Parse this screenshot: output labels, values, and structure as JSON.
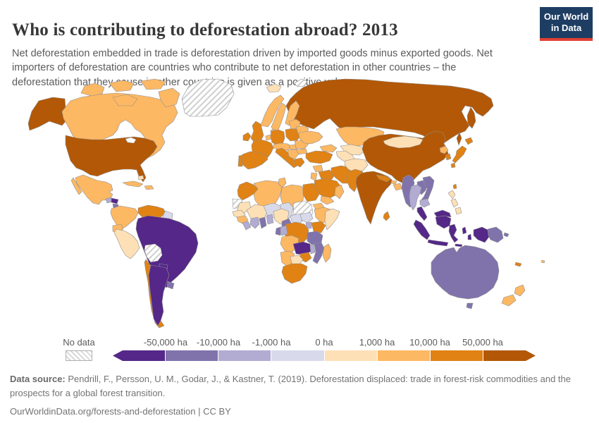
{
  "header": {
    "title": "Who is contributing to deforestation abroad? 2013",
    "subtitle": "Net deforestation embedded in trade is deforestation driven by imported goods minus exported goods. Net importers of deforestation are countries who contribute to net deforestation in other countries – the deforestation that they cause in other countries is given as a positive value.",
    "logo_line1": "Our World",
    "logo_line2": "in Data",
    "logo_bg_color": "#1d3d63",
    "logo_accent_color": "#e04034"
  },
  "legend": {
    "no_data_label": "No data",
    "tick_labels": [
      "-50,000 ha",
      "-10,000 ha",
      "-1,000 ha",
      "0 ha",
      "1,000 ha",
      "10,000 ha",
      "50,000 ha"
    ],
    "colors": [
      "#542788",
      "#8073ac",
      "#b2abd2",
      "#d8daeb",
      "#fee0b6",
      "#fdb863",
      "#e08214",
      "#b35806"
    ],
    "bin_ranges": [
      "below -50,000 ha",
      "-50,000 to -10,000 ha",
      "-10,000 to -1,000 ha",
      "-1,000 to 0 ha",
      "0 to 1,000 ha",
      "1,000 to 10,000 ha",
      "10,000 to 50,000 ha",
      "above 50,000 ha"
    ]
  },
  "footer": {
    "source_label": "Data source:",
    "source_text": " Pendrill, F., Persson, U. M., Godar, J., & Kastner, T. (2019). Deforestation displaced: trade in forest-risk commodities and the prospects for a global forest transition.",
    "link_line": "OurWorldinData.org/forests-and-deforestation | CC BY"
  },
  "chart_data": {
    "type": "choropleth",
    "title": "Who is contributing to deforestation abroad?",
    "year": "2013",
    "unit": "ha",
    "legend_position": "bottom",
    "countries": {
      "united-states": {
        "name": "United States",
        "bin": 7
      },
      "canada": {
        "name": "Canada",
        "bin": 5
      },
      "greenland": {
        "name": "Greenland",
        "bin": "no_data"
      },
      "mexico": {
        "name": "Mexico",
        "bin": 5
      },
      "guatemala": {
        "name": "Guatemala",
        "bin": 2
      },
      "honduras": {
        "name": "Honduras",
        "bin": 0
      },
      "nicaragua": {
        "name": "Nicaragua",
        "bin": 1
      },
      "costa-rica": {
        "name": "Costa Rica",
        "bin": 5
      },
      "panama": {
        "name": "Panama",
        "bin": 5
      },
      "cuba": {
        "name": "Cuba",
        "bin": 5
      },
      "hispaniola": {
        "name": "Haiti and Dominican Republic",
        "bin": 5
      },
      "bahamas": {
        "name": "Bahamas",
        "bin": 4
      },
      "colombia": {
        "name": "Colombia",
        "bin": 5
      },
      "venezuela": {
        "name": "Venezuela",
        "bin": 6
      },
      "guianas": {
        "name": "Guyana and Suriname",
        "bin": 3
      },
      "ecuador": {
        "name": "Ecuador",
        "bin": 5
      },
      "peru": {
        "name": "Peru",
        "bin": 4
      },
      "brazil": {
        "name": "Brazil",
        "bin": 0
      },
      "bolivia": {
        "name": "Bolivia",
        "bin": "no_data"
      },
      "paraguay": {
        "name": "Paraguay",
        "bin": 0
      },
      "chile": {
        "name": "Chile",
        "bin": 6
      },
      "argentina": {
        "name": "Argentina",
        "bin": 0
      },
      "uruguay": {
        "name": "Uruguay",
        "bin": 1
      },
      "iceland": {
        "name": "Iceland",
        "bin": 4
      },
      "svalbard": {
        "name": "Svalbard",
        "bin": "no_data"
      },
      "united-kingdom": {
        "name": "United Kingdom",
        "bin": 6
      },
      "ireland": {
        "name": "Ireland",
        "bin": 6
      },
      "norway": {
        "name": "Norway",
        "bin": 5
      },
      "sweden": {
        "name": "Sweden",
        "bin": 5
      },
      "finland": {
        "name": "Finland",
        "bin": 5
      },
      "denmark": {
        "name": "Denmark",
        "bin": 5
      },
      "benelux": {
        "name": "Netherlands and Belgium",
        "bin": 5
      },
      "france": {
        "name": "France",
        "bin": 6
      },
      "spain": {
        "name": "Spain",
        "bin": 6
      },
      "portugal": {
        "name": "Portugal",
        "bin": 6
      },
      "germany": {
        "name": "Germany",
        "bin": 6
      },
      "poland": {
        "name": "Poland",
        "bin": 6
      },
      "czechia-austria": {
        "name": "Czechia and Austria",
        "bin": 5
      },
      "italy": {
        "name": "Italy",
        "bin": 6
      },
      "hungary": {
        "name": "Hungary",
        "bin": 5
      },
      "balkans": {
        "name": "Balkans",
        "bin": 5
      },
      "greece": {
        "name": "Greece",
        "bin": 6
      },
      "romania": {
        "name": "Romania",
        "bin": 5
      },
      "bulgaria": {
        "name": "Bulgaria",
        "bin": 5
      },
      "baltics": {
        "name": "Baltic states",
        "bin": 5
      },
      "belarus": {
        "name": "Belarus",
        "bin": 5
      },
      "ukraine": {
        "name": "Ukraine",
        "bin": 5
      },
      "caucasus": {
        "name": "Georgia and Azerbaijan",
        "bin": 5
      },
      "turkey": {
        "name": "Turkey",
        "bin": 6
      },
      "russia": {
        "name": "Russia",
        "bin": 7
      },
      "morocco": {
        "name": "Morocco",
        "bin": 6
      },
      "western-sahara": {
        "name": "Western Sahara",
        "bin": "no_data"
      },
      "algeria": {
        "name": "Algeria",
        "bin": 5
      },
      "tunisia": {
        "name": "Tunisia",
        "bin": 5
      },
      "libya": {
        "name": "Libya",
        "bin": 5
      },
      "egypt": {
        "name": "Egypt",
        "bin": 6
      },
      "mauritania": {
        "name": "Mauritania",
        "bin": 4
      },
      "mali": {
        "name": "Mali",
        "bin": 4
      },
      "niger": {
        "name": "Niger",
        "bin": 3
      },
      "chad": {
        "name": "Chad",
        "bin": 3
      },
      "sudan": {
        "name": "Sudan",
        "bin": "no_data"
      },
      "senegal": {
        "name": "Senegal",
        "bin": 4
      },
      "guinea": {
        "name": "Guinea",
        "bin": 5
      },
      "sierra-leone-liberia": {
        "name": "Sierra Leone and Liberia",
        "bin": 2
      },
      "ivory-coast": {
        "name": "Cote d'Ivoire",
        "bin": 2
      },
      "ghana": {
        "name": "Ghana",
        "bin": 1
      },
      "togo-benin": {
        "name": "Togo and Benin",
        "bin": 2
      },
      "nigeria": {
        "name": "Nigeria",
        "bin": 4
      },
      "cameroon": {
        "name": "Cameroon",
        "bin": 1
      },
      "central-african-republic": {
        "name": "Central African Republic",
        "bin": 3
      },
      "south-sudan": {
        "name": "South Sudan",
        "bin": 3
      },
      "eritrea": {
        "name": "Eritrea",
        "bin": 5
      },
      "ethiopia": {
        "name": "Ethiopia",
        "bin": 5
      },
      "somalia": {
        "name": "Somalia",
        "bin": 4
      },
      "uganda": {
        "name": "Uganda",
        "bin": 2
      },
      "kenya": {
        "name": "Kenya",
        "bin": 6
      },
      "drc": {
        "name": "Democratic Republic of Congo",
        "bin": 6
      },
      "congo": {
        "name": "Congo",
        "bin": 2
      },
      "gabon": {
        "name": "Gabon",
        "bin": 1
      },
      "tanzania": {
        "name": "Tanzania",
        "bin": 1
      },
      "angola": {
        "name": "Angola",
        "bin": 5
      },
      "zambia": {
        "name": "Zambia",
        "bin": 0
      },
      "malawi": {
        "name": "Malawi",
        "bin": 2
      },
      "mozambique": {
        "name": "Mozambique",
        "bin": 1
      },
      "zimbabwe": {
        "name": "Zimbabwe",
        "bin": 6
      },
      "namibia": {
        "name": "Namibia",
        "bin": 5
      },
      "botswana": {
        "name": "Botswana",
        "bin": 4
      },
      "south-africa": {
        "name": "South Africa",
        "bin": 6
      },
      "madagascar": {
        "name": "Madagascar",
        "bin": 5
      },
      "syria": {
        "name": "Syria",
        "bin": 5
      },
      "iraq": {
        "name": "Iraq",
        "bin": 6
      },
      "jordan-israel": {
        "name": "Jordan and Israel",
        "bin": 5
      },
      "saudi-arabia": {
        "name": "Saudi Arabia",
        "bin": 6
      },
      "yemen": {
        "name": "Yemen",
        "bin": 5
      },
      "oman": {
        "name": "Oman",
        "bin": 5
      },
      "iran": {
        "name": "Iran",
        "bin": 6
      },
      "kazakhstan": {
        "name": "Kazakhstan",
        "bin": 5
      },
      "uzbekistan": {
        "name": "Uzbekistan",
        "bin": 4
      },
      "turkmenistan": {
        "name": "Turkmenistan",
        "bin": 4
      },
      "kyrgyzstan": {
        "name": "Kyrgyzstan",
        "bin": 4
      },
      "tajikistan": {
        "name": "Tajikistan",
        "bin": 4
      },
      "afghanistan": {
        "name": "Afghanistan",
        "bin": 4
      },
      "pakistan": {
        "name": "Pakistan",
        "bin": 6
      },
      "india": {
        "name": "India",
        "bin": 7
      },
      "nepal": {
        "name": "Nepal",
        "bin": 6
      },
      "bhutan": {
        "name": "Bhutan",
        "bin": 5
      },
      "bangladesh": {
        "name": "Bangladesh",
        "bin": 5
      },
      "sri-lanka": {
        "name": "Sri Lanka",
        "bin": 6
      },
      "china": {
        "name": "China",
        "bin": 7
      },
      "mongolia": {
        "name": "Mongolia",
        "bin": 4
      },
      "taiwan": {
        "name": "Taiwan",
        "bin": 6
      },
      "north-korea": {
        "name": "North Korea",
        "bin": 5
      },
      "south-korea": {
        "name": "South Korea",
        "bin": 6
      },
      "japan": {
        "name": "Japan",
        "bin": 6
      },
      "myanmar": {
        "name": "Myanmar",
        "bin": 1
      },
      "thailand": {
        "name": "Thailand",
        "bin": 2
      },
      "laos": {
        "name": "Laos",
        "bin": 1
      },
      "vietnam": {
        "name": "Vietnam",
        "bin": 1
      },
      "cambodia": {
        "name": "Cambodia",
        "bin": 2
      },
      "malaysia": {
        "name": "Malaysia",
        "bin": 0
      },
      "indonesia": {
        "name": "Indonesia",
        "bin": 0
      },
      "philippines": {
        "name": "Philippines",
        "bin": 4
      },
      "papua-new-guinea": {
        "name": "Papua New Guinea",
        "bin": 1
      },
      "australia": {
        "name": "Australia",
        "bin": 1
      },
      "new-zealand": {
        "name": "New Zealand",
        "bin": 5
      },
      "new-caledonia": {
        "name": "New Caledonia",
        "bin": 6
      },
      "fiji": {
        "name": "Fiji",
        "bin": 5
      }
    }
  }
}
